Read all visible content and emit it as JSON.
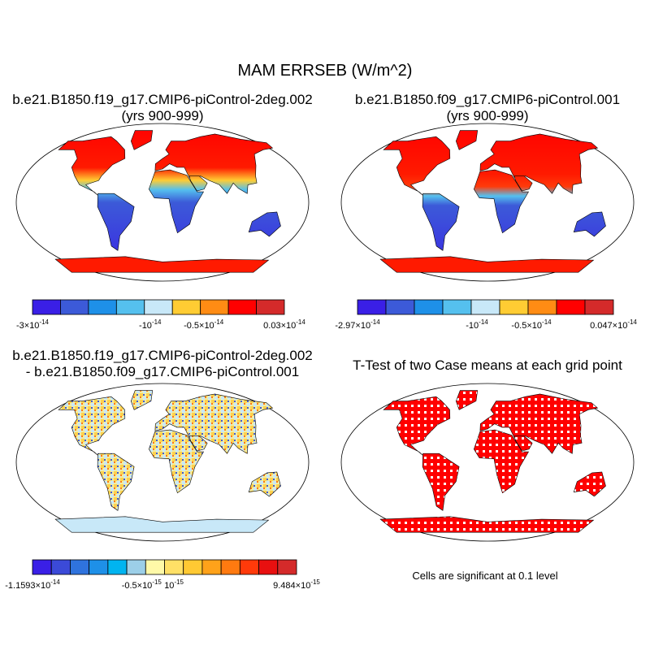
{
  "title": "MAM ERRSEB (W/m^2)",
  "panels": [
    {
      "title_lines": [
        "b.e21.B1850.f19_g17.CMIP6-piControl-2deg.002",
        "(yrs 900-999)"
      ],
      "colorbar": {
        "colors": [
          "#3a1fe6",
          "#3c5ad8",
          "#1e90e8",
          "#55c0ee",
          "#c8e8f8",
          "#ffcc33",
          "#ff8c14",
          "#ff0000",
          "#d42a2a"
        ],
        "labels": [
          {
            "base": "-3×10",
            "exp": "-14"
          },
          {
            "base": "-10",
            "exp": "-14"
          },
          {
            "base": "-0.5×10",
            "exp": "-14"
          },
          {
            "base": "0.03×10",
            "exp": "-14"
          }
        ]
      }
    },
    {
      "title_lines": [
        "b.e21.B1850.f09_g17.CMIP6-piControl.001",
        "(yrs 900-999)"
      ],
      "colorbar": {
        "colors": [
          "#3a1fe6",
          "#3c5ad8",
          "#1e90e8",
          "#55c0ee",
          "#c8e8f8",
          "#ffcc33",
          "#ff8c14",
          "#ff0000",
          "#d42a2a"
        ],
        "labels": [
          {
            "base": "-2.97×10",
            "exp": "-14"
          },
          {
            "base": "-10",
            "exp": "-14"
          },
          {
            "base": "-0.5×10",
            "exp": "-14"
          },
          {
            "base": "0.047×10",
            "exp": "-14"
          }
        ]
      }
    },
    {
      "title_lines": [
        "b.e21.B1850.f19_g17.CMIP6-piControl-2deg.002",
        "- b.e21.B1850.f09_g17.CMIP6-piControl.001"
      ],
      "colorbar": {
        "colors": [
          "#3a1fe6",
          "#3b4ad8",
          "#2f73dd",
          "#1e90e8",
          "#00b4f0",
          "#9ccfe8",
          "#fff9a8",
          "#ffe066",
          "#ffc933",
          "#ffa21a",
          "#ff7a10",
          "#ff3a0a",
          "#e81010",
          "#d42a2a"
        ],
        "labels": [
          {
            "base": "-1.1593×10",
            "exp": "-14"
          },
          {
            "base": "-0.5×10",
            "exp": "-15"
          },
          {
            "base": "10",
            "exp": "-15"
          },
          {
            "base": "9.484×10",
            "exp": "-15"
          }
        ]
      }
    },
    {
      "title_lines": [
        "T-Test of two Case means at each grid point"
      ],
      "note": "Cells are significant at 0.1 level"
    }
  ]
}
